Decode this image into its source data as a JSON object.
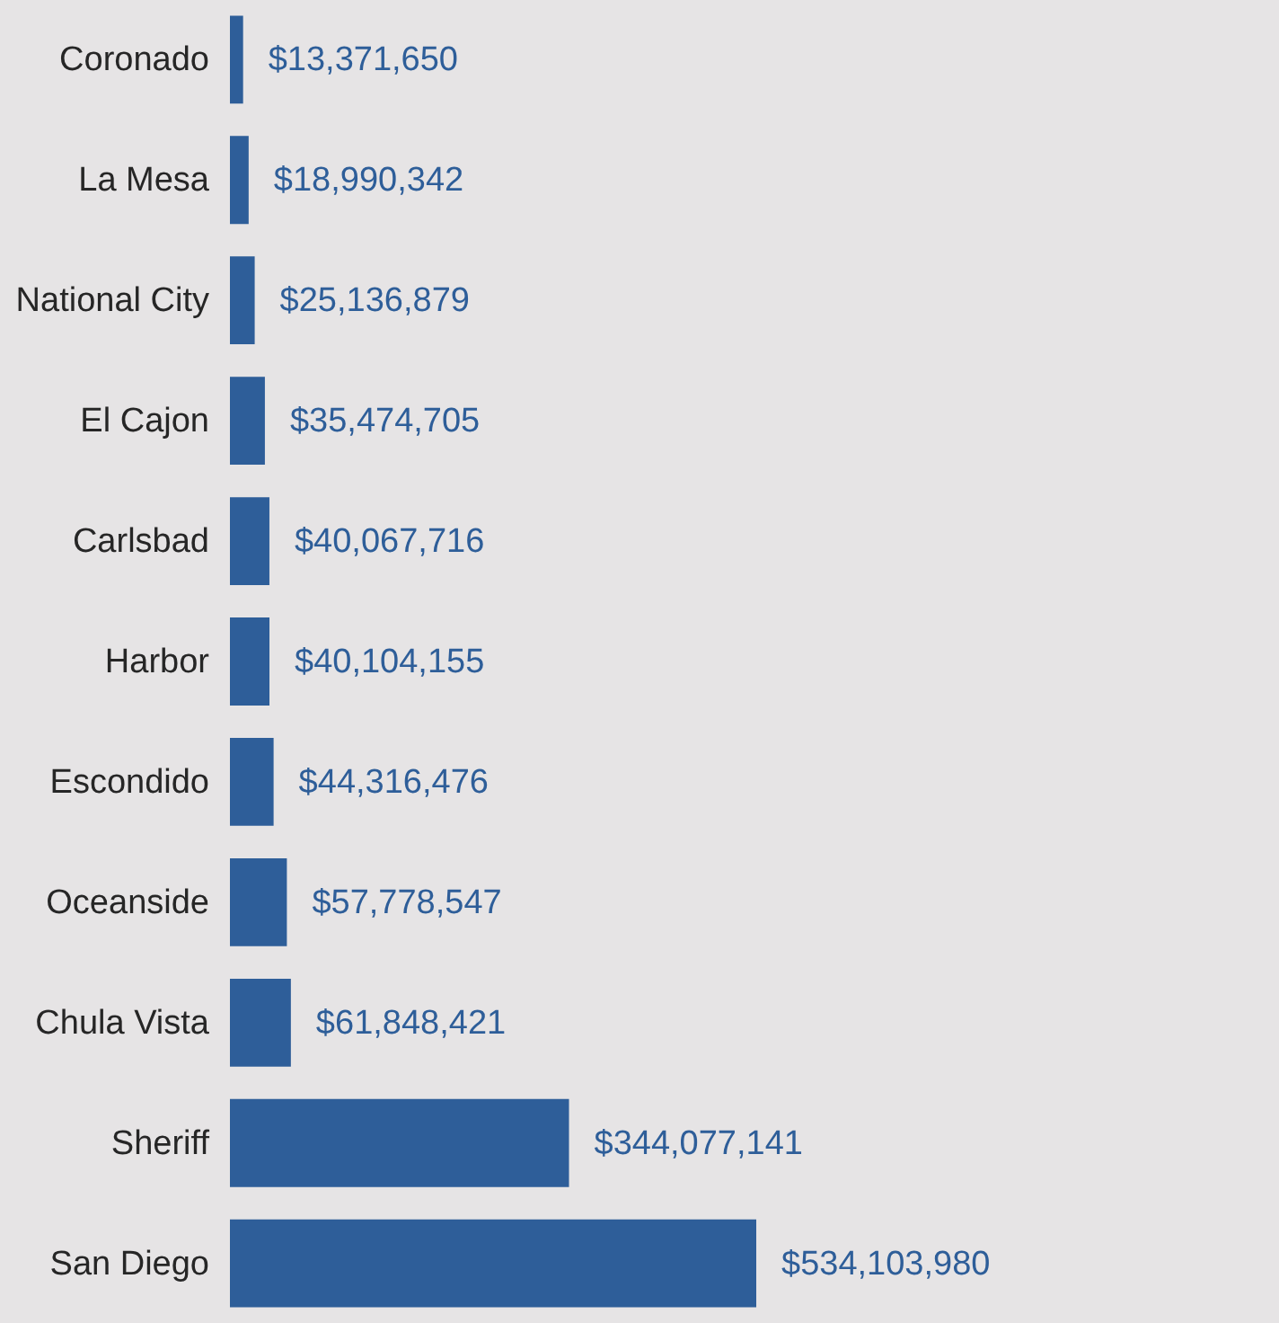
{
  "chart_data": {
    "type": "bar",
    "orientation": "horizontal",
    "categories": [
      "Coronado",
      "La Mesa",
      "National City",
      "El Cajon",
      "Carlsbad",
      "Harbor",
      "Escondido",
      "Oceanside",
      "Chula Vista",
      "Sheriff",
      "San Diego"
    ],
    "values": [
      13371650,
      18990342,
      25136879,
      35474705,
      40067716,
      40104155,
      44316476,
      57778547,
      61848421,
      344077141,
      534103980
    ],
    "color": "#2e5e99",
    "value_labels": [
      "$13,371,650",
      "$18,990,342",
      "$25,136,879",
      "$35,474,705",
      "$40,067,716",
      "$40,104,155",
      "$44,316,476",
      "$57,778,547",
      "$61,848,421",
      "$344,077,141",
      "$534,103,980"
    ],
    "grid": false
  }
}
